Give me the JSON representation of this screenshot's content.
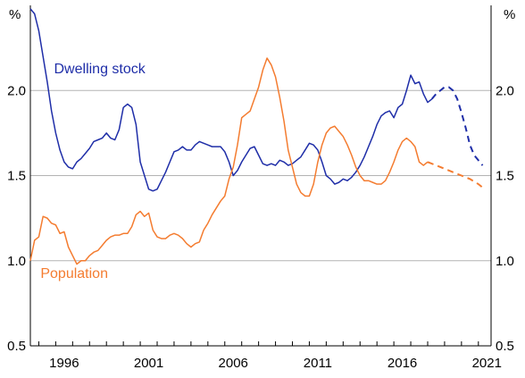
{
  "chart_data": {
    "type": "line",
    "y_unit_left": "%",
    "y_unit_right": "%",
    "ylim": [
      0.5,
      2.5
    ],
    "y_ticks": [
      {
        "value": 0.5,
        "label": "0.5"
      },
      {
        "value": 1.0,
        "label": "1.0"
      },
      {
        "value": 1.5,
        "label": "1.5"
      },
      {
        "value": 2.0,
        "label": "2.0"
      },
      {
        "value": 2.5,
        "label": ""
      }
    ],
    "xlim": [
      1994.5,
      2021.75
    ],
    "x_ticks": [
      {
        "value": 1996,
        "label": "1996"
      },
      {
        "value": 2001,
        "label": "2001"
      },
      {
        "value": 2006,
        "label": "2006"
      },
      {
        "value": 2011,
        "label": "2011"
      },
      {
        "value": 2016,
        "label": "2016"
      },
      {
        "value": 2021,
        "label": "2021"
      }
    ],
    "grid": true,
    "series": [
      {
        "name": "Dwelling stock",
        "color": "#1f2ea8",
        "label_at": [
          1995.9,
          2.1
        ],
        "points": [
          [
            1994.5,
            2.48
          ],
          [
            1994.75,
            2.45
          ],
          [
            1995.0,
            2.35
          ],
          [
            1995.25,
            2.2
          ],
          [
            1995.5,
            2.05
          ],
          [
            1995.75,
            1.88
          ],
          [
            1996.0,
            1.75
          ],
          [
            1996.25,
            1.65
          ],
          [
            1996.5,
            1.58
          ],
          [
            1996.75,
            1.55
          ],
          [
            1997.0,
            1.54
          ],
          [
            1997.25,
            1.58
          ],
          [
            1997.5,
            1.6
          ],
          [
            1997.75,
            1.63
          ],
          [
            1998.0,
            1.66
          ],
          [
            1998.25,
            1.7
          ],
          [
            1998.5,
            1.71
          ],
          [
            1998.75,
            1.72
          ],
          [
            1999.0,
            1.75
          ],
          [
            1999.25,
            1.72
          ],
          [
            1999.5,
            1.71
          ],
          [
            1999.75,
            1.77
          ],
          [
            2000.0,
            1.9
          ],
          [
            2000.25,
            1.92
          ],
          [
            2000.5,
            1.9
          ],
          [
            2000.75,
            1.8
          ],
          [
            2001.0,
            1.58
          ],
          [
            2001.25,
            1.5
          ],
          [
            2001.5,
            1.42
          ],
          [
            2001.75,
            1.41
          ],
          [
            2002.0,
            1.42
          ],
          [
            2002.25,
            1.47
          ],
          [
            2002.5,
            1.52
          ],
          [
            2002.75,
            1.58
          ],
          [
            2003.0,
            1.64
          ],
          [
            2003.25,
            1.65
          ],
          [
            2003.5,
            1.67
          ],
          [
            2003.75,
            1.65
          ],
          [
            2004.0,
            1.65
          ],
          [
            2004.25,
            1.68
          ],
          [
            2004.5,
            1.7
          ],
          [
            2004.75,
            1.69
          ],
          [
            2005.0,
            1.68
          ],
          [
            2005.25,
            1.67
          ],
          [
            2005.5,
            1.67
          ],
          [
            2005.75,
            1.67
          ],
          [
            2006.0,
            1.64
          ],
          [
            2006.25,
            1.58
          ],
          [
            2006.5,
            1.5
          ],
          [
            2006.75,
            1.53
          ],
          [
            2007.0,
            1.58
          ],
          [
            2007.25,
            1.62
          ],
          [
            2007.5,
            1.66
          ],
          [
            2007.75,
            1.67
          ],
          [
            2008.0,
            1.62
          ],
          [
            2008.25,
            1.57
          ],
          [
            2008.5,
            1.56
          ],
          [
            2008.75,
            1.57
          ],
          [
            2009.0,
            1.56
          ],
          [
            2009.25,
            1.59
          ],
          [
            2009.5,
            1.58
          ],
          [
            2009.75,
            1.56
          ],
          [
            2010.0,
            1.57
          ],
          [
            2010.25,
            1.59
          ],
          [
            2010.5,
            1.61
          ],
          [
            2010.75,
            1.65
          ],
          [
            2011.0,
            1.69
          ],
          [
            2011.25,
            1.68
          ],
          [
            2011.5,
            1.65
          ],
          [
            2011.75,
            1.58
          ],
          [
            2012.0,
            1.5
          ],
          [
            2012.25,
            1.48
          ],
          [
            2012.5,
            1.45
          ],
          [
            2012.75,
            1.46
          ],
          [
            2013.0,
            1.48
          ],
          [
            2013.25,
            1.47
          ],
          [
            2013.5,
            1.49
          ],
          [
            2013.75,
            1.52
          ],
          [
            2014.0,
            1.56
          ],
          [
            2014.25,
            1.61
          ],
          [
            2014.5,
            1.67
          ],
          [
            2014.75,
            1.73
          ],
          [
            2015.0,
            1.8
          ],
          [
            2015.25,
            1.85
          ],
          [
            2015.5,
            1.87
          ],
          [
            2015.75,
            1.88
          ],
          [
            2016.0,
            1.84
          ],
          [
            2016.25,
            1.9
          ],
          [
            2016.5,
            1.92
          ],
          [
            2016.75,
            2.0
          ],
          [
            2017.0,
            2.09
          ],
          [
            2017.25,
            2.04
          ],
          [
            2017.5,
            2.05
          ],
          [
            2017.75,
            1.98
          ],
          [
            2018.0,
            1.93
          ],
          [
            2018.25,
            1.95
          ]
        ],
        "forecast": [
          [
            2018.25,
            1.95
          ],
          [
            2018.5,
            1.98
          ],
          [
            2018.75,
            2.0
          ],
          [
            2019.0,
            2.02
          ],
          [
            2019.25,
            2.02
          ],
          [
            2019.5,
            2.0
          ],
          [
            2019.75,
            1.95
          ],
          [
            2020.0,
            1.87
          ],
          [
            2020.25,
            1.78
          ],
          [
            2020.5,
            1.68
          ],
          [
            2020.75,
            1.62
          ],
          [
            2021.0,
            1.59
          ],
          [
            2021.25,
            1.56
          ]
        ]
      },
      {
        "name": "Population",
        "color": "#f47c30",
        "label_at": [
          1995.1,
          0.9
        ],
        "points": [
          [
            1994.5,
            1.0
          ],
          [
            1994.75,
            1.12
          ],
          [
            1995.0,
            1.14
          ],
          [
            1995.25,
            1.26
          ],
          [
            1995.5,
            1.25
          ],
          [
            1995.75,
            1.22
          ],
          [
            1996.0,
            1.21
          ],
          [
            1996.25,
            1.16
          ],
          [
            1996.5,
            1.17
          ],
          [
            1996.75,
            1.08
          ],
          [
            1997.0,
            1.03
          ],
          [
            1997.25,
            0.98
          ],
          [
            1997.5,
            1.0
          ],
          [
            1997.75,
            1.0
          ],
          [
            1998.0,
            1.03
          ],
          [
            1998.25,
            1.05
          ],
          [
            1998.5,
            1.06
          ],
          [
            1998.75,
            1.09
          ],
          [
            1999.0,
            1.12
          ],
          [
            1999.25,
            1.14
          ],
          [
            1999.5,
            1.15
          ],
          [
            1999.75,
            1.15
          ],
          [
            2000.0,
            1.16
          ],
          [
            2000.25,
            1.16
          ],
          [
            2000.5,
            1.2
          ],
          [
            2000.75,
            1.27
          ],
          [
            2001.0,
            1.29
          ],
          [
            2001.25,
            1.26
          ],
          [
            2001.5,
            1.28
          ],
          [
            2001.75,
            1.18
          ],
          [
            2002.0,
            1.14
          ],
          [
            2002.25,
            1.13
          ],
          [
            2002.5,
            1.13
          ],
          [
            2002.75,
            1.15
          ],
          [
            2003.0,
            1.16
          ],
          [
            2003.25,
            1.15
          ],
          [
            2003.5,
            1.13
          ],
          [
            2003.75,
            1.1
          ],
          [
            2004.0,
            1.08
          ],
          [
            2004.25,
            1.1
          ],
          [
            2004.5,
            1.11
          ],
          [
            2004.75,
            1.18
          ],
          [
            2005.0,
            1.22
          ],
          [
            2005.25,
            1.27
          ],
          [
            2005.5,
            1.31
          ],
          [
            2005.75,
            1.35
          ],
          [
            2006.0,
            1.38
          ],
          [
            2006.25,
            1.48
          ],
          [
            2006.5,
            1.55
          ],
          [
            2006.75,
            1.68
          ],
          [
            2007.0,
            1.84
          ],
          [
            2007.25,
            1.86
          ],
          [
            2007.5,
            1.88
          ],
          [
            2007.75,
            1.95
          ],
          [
            2008.0,
            2.02
          ],
          [
            2008.25,
            2.12
          ],
          [
            2008.5,
            2.19
          ],
          [
            2008.75,
            2.15
          ],
          [
            2009.0,
            2.08
          ],
          [
            2009.25,
            1.96
          ],
          [
            2009.5,
            1.82
          ],
          [
            2009.75,
            1.65
          ],
          [
            2010.0,
            1.55
          ],
          [
            2010.25,
            1.45
          ],
          [
            2010.5,
            1.4
          ],
          [
            2010.75,
            1.38
          ],
          [
            2011.0,
            1.38
          ],
          [
            2011.25,
            1.45
          ],
          [
            2011.5,
            1.58
          ],
          [
            2011.75,
            1.68
          ],
          [
            2012.0,
            1.75
          ],
          [
            2012.25,
            1.78
          ],
          [
            2012.5,
            1.79
          ],
          [
            2012.75,
            1.76
          ],
          [
            2013.0,
            1.73
          ],
          [
            2013.25,
            1.68
          ],
          [
            2013.5,
            1.62
          ],
          [
            2013.75,
            1.55
          ],
          [
            2014.0,
            1.5
          ],
          [
            2014.25,
            1.47
          ],
          [
            2014.5,
            1.47
          ],
          [
            2014.75,
            1.46
          ],
          [
            2015.0,
            1.45
          ],
          [
            2015.25,
            1.45
          ],
          [
            2015.5,
            1.47
          ],
          [
            2015.75,
            1.52
          ],
          [
            2016.0,
            1.58
          ],
          [
            2016.25,
            1.65
          ],
          [
            2016.5,
            1.7
          ],
          [
            2016.75,
            1.72
          ],
          [
            2017.0,
            1.7
          ],
          [
            2017.25,
            1.67
          ],
          [
            2017.5,
            1.58
          ],
          [
            2017.75,
            1.56
          ],
          [
            2018.0,
            1.58
          ]
        ],
        "forecast": [
          [
            2018.0,
            1.58
          ],
          [
            2018.5,
            1.56
          ],
          [
            2019.0,
            1.54
          ],
          [
            2019.5,
            1.52
          ],
          [
            2020.0,
            1.5
          ],
          [
            2020.5,
            1.48
          ],
          [
            2021.0,
            1.45
          ],
          [
            2021.25,
            1.43
          ]
        ]
      }
    ]
  }
}
